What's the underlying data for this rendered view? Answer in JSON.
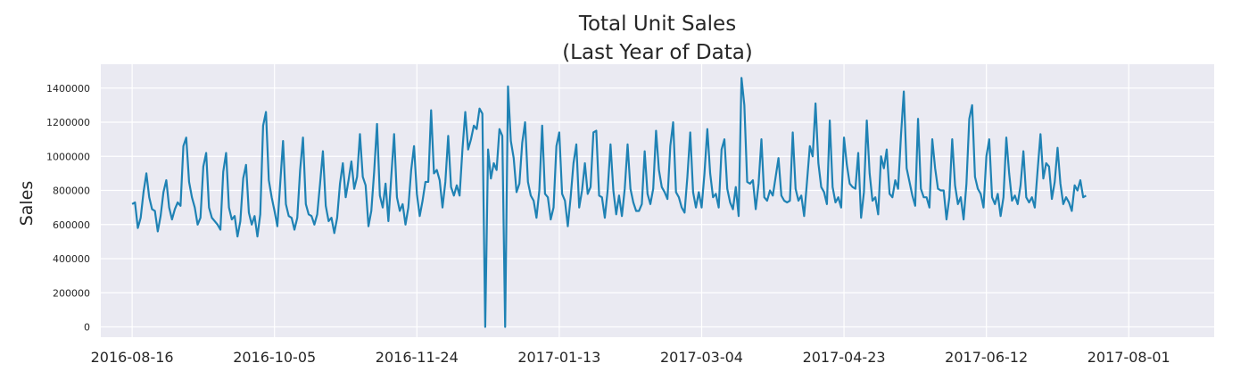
{
  "chart_data": {
    "type": "line",
    "title": "Total Unit Sales",
    "subtitle": "(Last Year of Data)",
    "xlabel": "",
    "ylabel": "Sales",
    "x_start": "2016-08-16",
    "x_ticks": [
      "2016-08-16",
      "2016-10-05",
      "2016-11-24",
      "2017-01-13",
      "2017-03-04",
      "2017-04-23",
      "2017-06-12",
      "2017-08-01"
    ],
    "y_ticks": [
      0,
      200000,
      400000,
      600000,
      800000,
      1000000,
      1200000,
      1400000
    ],
    "xlim": [
      "2016-08-05",
      "2017-08-31"
    ],
    "ylim": [
      -60000,
      1540000
    ],
    "grid": true,
    "colors": {
      "line": "#1f82b4",
      "background": "#eaeaf2",
      "grid": "#ffffff",
      "text": "#262626"
    },
    "series": [
      {
        "values": [
          720000,
          730000,
          580000,
          640000,
          790000,
          900000,
          760000,
          690000,
          680000,
          560000,
          650000,
          790000,
          860000,
          700000,
          630000,
          690000,
          730000,
          710000,
          1060000,
          1110000,
          850000,
          760000,
          700000,
          600000,
          640000,
          940000,
          1020000,
          700000,
          640000,
          620000,
          600000,
          570000,
          910000,
          1020000,
          700000,
          630000,
          650000,
          530000,
          620000,
          870000,
          950000,
          670000,
          600000,
          650000,
          530000,
          660000,
          1180000,
          1260000,
          860000,
          760000,
          680000,
          590000,
          840000,
          1090000,
          720000,
          650000,
          640000,
          570000,
          640000,
          920000,
          1110000,
          720000,
          660000,
          650000,
          600000,
          660000,
          840000,
          1030000,
          710000,
          620000,
          640000,
          550000,
          640000,
          840000,
          960000,
          760000,
          860000,
          970000,
          810000,
          880000,
          1130000,
          880000,
          830000,
          590000,
          680000,
          910000,
          1190000,
          770000,
          700000,
          840000,
          620000,
          880000,
          1130000,
          760000,
          680000,
          720000,
          600000,
          700000,
          920000,
          1060000,
          780000,
          650000,
          740000,
          850000,
          850000,
          1270000,
          900000,
          920000,
          860000,
          700000,
          850000,
          1120000,
          820000,
          770000,
          830000,
          770000,
          1040000,
          1260000,
          1040000,
          1100000,
          1180000,
          1160000,
          1280000,
          1250000,
          0,
          1040000,
          870000,
          960000,
          920000,
          1160000,
          1120000,
          0,
          1410000,
          1090000,
          990000,
          790000,
          840000,
          1080000,
          1200000,
          850000,
          770000,
          740000,
          640000,
          800000,
          1180000,
          780000,
          760000,
          630000,
          700000,
          1060000,
          1140000,
          780000,
          740000,
          590000,
          760000,
          960000,
          1070000,
          700000,
          800000,
          960000,
          780000,
          820000,
          1140000,
          1150000,
          770000,
          760000,
          640000,
          800000,
          1070000,
          800000,
          660000,
          770000,
          650000,
          810000,
          1070000,
          810000,
          730000,
          680000,
          680000,
          720000,
          1030000,
          780000,
          720000,
          810000,
          1150000,
          920000,
          820000,
          790000,
          750000,
          1060000,
          1200000,
          790000,
          760000,
          700000,
          670000,
          880000,
          1140000,
          790000,
          700000,
          790000,
          700000,
          900000,
          1160000,
          900000,
          760000,
          780000,
          700000,
          1040000,
          1100000,
          810000,
          730000,
          690000,
          820000,
          650000,
          1460000,
          1300000,
          850000,
          840000,
          860000,
          690000,
          840000,
          1100000,
          760000,
          740000,
          800000,
          770000,
          880000,
          990000,
          770000,
          740000,
          730000,
          740000,
          1140000,
          810000,
          740000,
          770000,
          650000,
          850000,
          1060000,
          1000000,
          1310000,
          960000,
          820000,
          790000,
          720000,
          1210000,
          820000,
          730000,
          760000,
          700000,
          1110000,
          950000,
          840000,
          820000,
          810000,
          1020000,
          640000,
          790000,
          1210000,
          900000,
          740000,
          760000,
          660000,
          1000000,
          930000,
          1040000,
          780000,
          760000,
          860000,
          810000,
          1120000,
          1380000,
          930000,
          850000,
          770000,
          710000,
          1220000,
          810000,
          760000,
          760000,
          700000,
          1100000,
          930000,
          810000,
          800000,
          800000,
          630000,
          760000,
          1100000,
          830000,
          720000,
          760000,
          630000,
          840000,
          1220000,
          1300000,
          880000,
          810000,
          780000,
          700000,
          1000000,
          1100000,
          760000,
          720000,
          780000,
          650000,
          760000,
          1110000,
          900000,
          740000,
          770000,
          720000,
          830000,
          1030000,
          760000,
          730000,
          760000,
          700000,
          920000,
          1130000,
          870000,
          960000,
          940000,
          750000,
          850000,
          1050000,
          840000,
          720000,
          760000,
          730000,
          680000,
          830000,
          800000,
          860000,
          760000,
          770000
        ]
      }
    ]
  }
}
